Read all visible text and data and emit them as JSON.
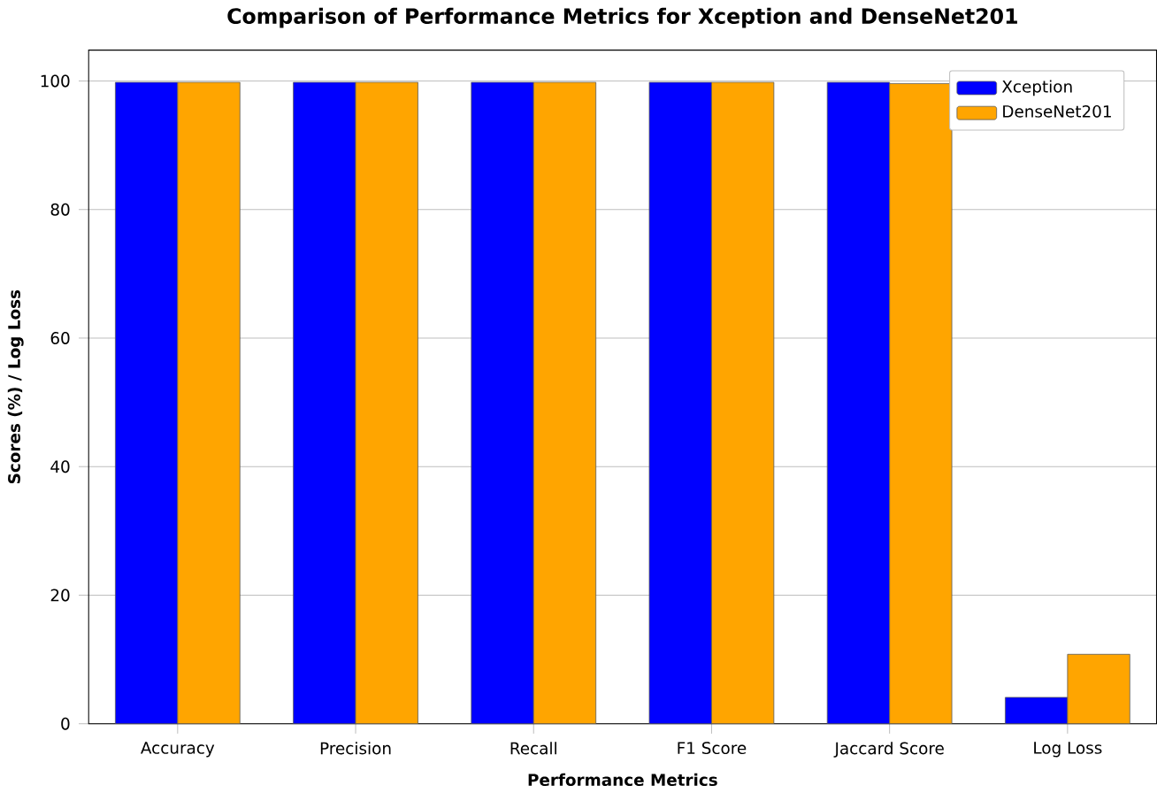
{
  "chart_data": {
    "type": "bar",
    "title": "Comparison of Performance Metrics for Xception and DenseNet201",
    "xlabel": "Performance Metrics",
    "ylabel": "Scores (%) / Log Loss",
    "categories": [
      "Accuracy",
      "Precision",
      "Recall",
      "F1 Score",
      "Jaccard Score",
      "Log Loss"
    ],
    "series": [
      {
        "name": "Xception",
        "color": "#0000ff",
        "values": [
          99.8,
          99.8,
          99.8,
          99.8,
          99.8,
          4.1
        ]
      },
      {
        "name": "DenseNet201",
        "color": "#ffa500",
        "values": [
          99.8,
          99.8,
          99.8,
          99.8,
          99.6,
          10.8
        ]
      }
    ],
    "ylim": [
      0,
      104.8
    ],
    "yticks": [
      0,
      20,
      40,
      60,
      80,
      100
    ],
    "grid": "y",
    "legend": "top right"
  }
}
